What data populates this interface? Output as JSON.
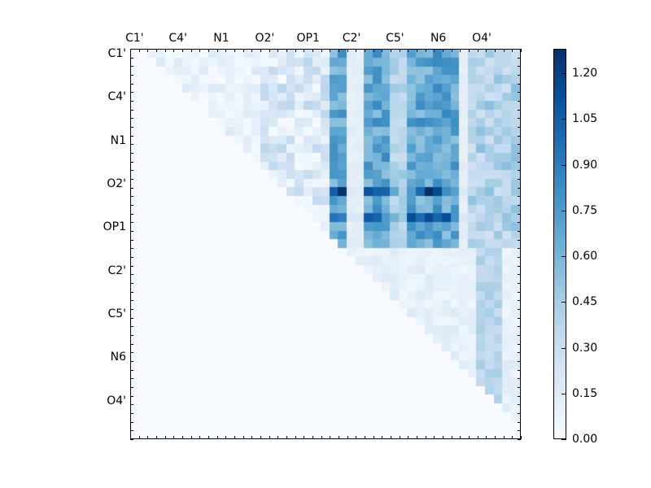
{
  "chart_data": {
    "type": "heatmap",
    "title": "",
    "xlabel": "",
    "ylabel": "",
    "n_rows": 45,
    "n_cols": 45,
    "x_tick_labels": [
      "C1'",
      "C4'",
      "N1",
      "O2'",
      "OP1",
      "C2'",
      "C5'",
      "N6",
      "O4'"
    ],
    "y_tick_labels": [
      "C1'",
      "C4'",
      "N1",
      "O2'",
      "OP1",
      "C2'",
      "C5'",
      "N6",
      "O4'"
    ],
    "tick_label_positions": [
      0,
      5,
      10,
      15,
      20,
      25,
      30,
      35,
      40
    ],
    "colormap": "Blues",
    "colorbar": {
      "min": 0.0,
      "max": 1.28,
      "ticks": [
        "0.00",
        "0.15",
        "0.30",
        "0.45",
        "0.60",
        "0.75",
        "0.90",
        "1.05",
        "1.20"
      ]
    },
    "structure": "upper-triangular matrix; strongest values (~0.9-1.28) in block rows 0-22 x cols 23-38; peak ~1.28 near row 16, col 34 and row 16, col 24; lower-right triangle values 0.05-0.45"
  }
}
